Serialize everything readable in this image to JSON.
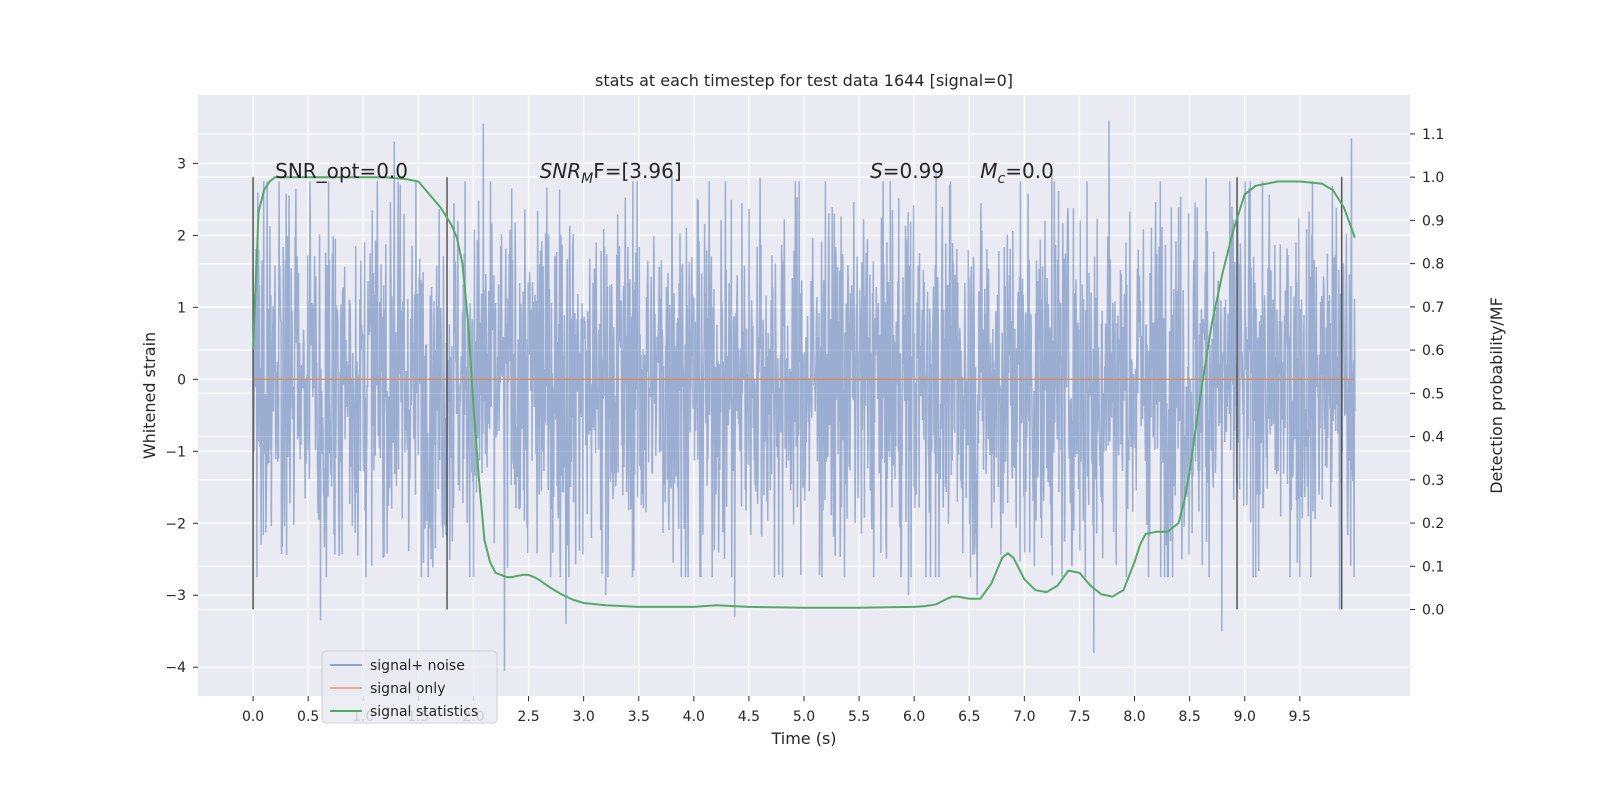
{
  "chart_data": {
    "type": "line",
    "title": "stats at each timestep for test data 1644 [signal=0]",
    "xlabel": "Time (s)",
    "ylabel": "Whitened strain",
    "y2label": "Detection probability/MF",
    "xlim": [
      -0.5,
      10.5
    ],
    "ylim": [
      -4.4,
      3.95
    ],
    "y2lim": [
      -0.2,
      1.19
    ],
    "x_ticks": [
      0.0,
      0.5,
      1.0,
      1.5,
      2.0,
      2.5,
      3.0,
      3.5,
      4.0,
      4.5,
      5.0,
      5.5,
      6.0,
      6.5,
      7.0,
      7.5,
      8.0,
      8.5,
      9.0,
      9.5
    ],
    "x_tick_labels": [
      "0.0",
      "0.5",
      "1.0",
      "1.5",
      "2.0",
      "2.5",
      "3.0",
      "3.5",
      "4.0",
      "4.5",
      "5.0",
      "5.5",
      "6.0",
      "6.5",
      "7.0",
      "7.5",
      "8.0",
      "8.5",
      "9.0",
      "9.5"
    ],
    "y_ticks": [
      -4,
      -3,
      -2,
      -1,
      0,
      1,
      2,
      3
    ],
    "y_tick_labels": [
      "−4",
      "−3",
      "−2",
      "−1",
      "0",
      "1",
      "2",
      "3"
    ],
    "y2_ticks": [
      0.0,
      0.1,
      0.2,
      0.3,
      0.4,
      0.5,
      0.6,
      0.7,
      0.8,
      0.9,
      1.0,
      1.1
    ],
    "y2_tick_labels": [
      "0.0",
      "0.1",
      "0.2",
      "0.3",
      "0.4",
      "0.5",
      "0.6",
      "0.7",
      "0.8",
      "0.9",
      "1.0",
      "1.1"
    ],
    "grid": true,
    "legend_position": "lower-left",
    "legend": [
      {
        "label": "signal+ noise",
        "color": "#4c72b0"
      },
      {
        "label": "signal only",
        "color": "#dd8452"
      },
      {
        "label": "signal statistics",
        "color": "#55a868"
      }
    ],
    "annotations": [
      {
        "text": "SNR_opt=0.0",
        "x": 0.2,
        "y2": 1.0
      },
      {
        "text": "SNR",
        "sub": "M",
        "rest": "F=[3.96]",
        "italic": true,
        "x": 2.6,
        "y2": 1.0
      },
      {
        "text": "S",
        "rest": "=0.99",
        "italic": true,
        "x": 5.6,
        "y2": 1.0
      },
      {
        "text": "M",
        "sub": "c",
        "rest": "=0.0",
        "italic": true,
        "x": 6.6,
        "y2": 1.0
      }
    ],
    "vertical_markers": [
      0.0,
      1.76,
      8.93,
      9.88
    ],
    "vertical_marker_range_y2": [
      0.0,
      1.0
    ],
    "series": [
      {
        "name": "signal+ noise",
        "color": "#4c72b0",
        "x_range": [
          0.0,
          10.0
        ],
        "typical_amplitude": 1.5,
        "peaks_up": [
          [
            1.28,
            3.3
          ],
          [
            2.09,
            3.55
          ],
          [
            7.77,
            3.6
          ],
          [
            9.97,
            3.35
          ],
          [
            0.39,
            2.65
          ],
          [
            3.8,
            2.85
          ],
          [
            4.6,
            2.8
          ],
          [
            6.2,
            2.9
          ],
          [
            7.25,
            2.9
          ],
          [
            8.65,
            2.8
          ]
        ],
        "peaks_down": [
          [
            2.28,
            -4.05
          ],
          [
            0.61,
            -3.35
          ],
          [
            2.84,
            -3.4
          ],
          [
            7.63,
            -3.8
          ],
          [
            8.79,
            -3.5
          ],
          [
            3.2,
            -3.0
          ],
          [
            4.37,
            -3.3
          ],
          [
            5.95,
            -3.0
          ],
          [
            6.57,
            -3.0
          ],
          [
            9.86,
            -3.2
          ]
        ]
      },
      {
        "name": "signal only",
        "color": "#dd8452",
        "x": [
          0.0,
          10.0
        ],
        "y": [
          0.0,
          0.0
        ]
      },
      {
        "name": "signal statistics",
        "color": "#55a868",
        "axis": "right",
        "x": [
          0.0,
          0.05,
          0.1,
          0.15,
          0.2,
          0.3,
          0.5,
          0.8,
          1.0,
          1.2,
          1.4,
          1.5,
          1.6,
          1.7,
          1.8,
          1.85,
          1.9,
          1.95,
          2.0,
          2.05,
          2.1,
          2.15,
          2.2,
          2.25,
          2.3,
          2.35,
          2.4,
          2.45,
          2.5,
          2.55,
          2.6,
          2.7,
          2.8,
          2.9,
          3.0,
          3.2,
          3.5,
          4.0,
          4.2,
          4.5,
          5.0,
          5.5,
          6.0,
          6.1,
          6.2,
          6.3,
          6.35,
          6.4,
          6.5,
          6.6,
          6.7,
          6.8,
          6.85,
          6.9,
          7.0,
          7.1,
          7.2,
          7.3,
          7.4,
          7.5,
          7.6,
          7.7,
          7.8,
          7.9,
          8.0,
          8.05,
          8.1,
          8.2,
          8.3,
          8.4,
          8.45,
          8.5,
          8.6,
          8.7,
          8.8,
          8.9,
          9.0,
          9.1,
          9.2,
          9.3,
          9.5,
          9.7,
          9.8,
          9.9,
          10.0
        ],
        "y": [
          0.6,
          0.92,
          0.97,
          0.99,
          1.0,
          1.0,
          1.0,
          1.0,
          1.0,
          1.0,
          0.995,
          0.99,
          0.96,
          0.93,
          0.89,
          0.86,
          0.8,
          0.67,
          0.47,
          0.3,
          0.16,
          0.11,
          0.085,
          0.08,
          0.075,
          0.075,
          0.078,
          0.08,
          0.08,
          0.075,
          0.068,
          0.05,
          0.035,
          0.023,
          0.015,
          0.01,
          0.006,
          0.006,
          0.01,
          0.006,
          0.004,
          0.004,
          0.006,
          0.008,
          0.012,
          0.025,
          0.03,
          0.03,
          0.025,
          0.025,
          0.06,
          0.12,
          0.13,
          0.12,
          0.07,
          0.045,
          0.04,
          0.055,
          0.09,
          0.085,
          0.055,
          0.035,
          0.03,
          0.045,
          0.11,
          0.15,
          0.175,
          0.18,
          0.18,
          0.2,
          0.25,
          0.32,
          0.5,
          0.66,
          0.78,
          0.88,
          0.96,
          0.98,
          0.985,
          0.99,
          0.99,
          0.985,
          0.97,
          0.93,
          0.86
        ]
      }
    ]
  }
}
